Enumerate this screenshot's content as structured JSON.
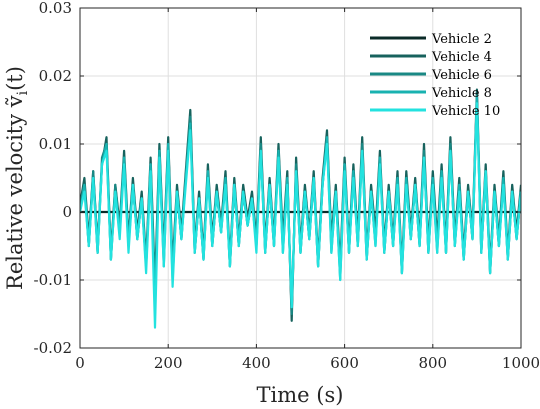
{
  "chart_data": {
    "type": "line",
    "xlabel": "Time (s)",
    "ylabel": "Relative velocity ṽ",
    "ylabel_sub": "i",
    "ylabel_arg": "(t)",
    "xlim": [
      0,
      1000
    ],
    "ylim": [
      -0.02,
      0.03
    ],
    "xticks": [
      0,
      200,
      400,
      600,
      800,
      1000
    ],
    "xtick_labels": [
      "0",
      "200",
      "400",
      "600",
      "800",
      "1000"
    ],
    "yticks": [
      -0.02,
      -0.01,
      0,
      0.01,
      0.02,
      0.03
    ],
    "ytick_labels": [
      "-0.02",
      "-0.01",
      "0",
      "0.01",
      "0.02",
      "0.03"
    ],
    "grid": true,
    "legend_position": "top-right",
    "series": [
      {
        "name": "Vehicle 2",
        "color": "#0b2b28",
        "x": [
          0,
          100,
          200,
          300,
          400,
          500,
          600,
          700,
          800,
          900,
          1000
        ],
        "values": [
          0,
          0,
          0,
          0,
          0,
          0,
          0,
          0,
          0,
          0,
          0
        ]
      },
      {
        "name": "Vehicle 4",
        "color": "#17625d",
        "x": [
          0,
          10,
          20,
          30,
          40,
          50,
          60,
          70,
          80,
          90,
          100,
          110,
          120,
          130,
          140,
          150,
          160,
          170,
          180,
          190,
          200,
          210,
          220,
          230,
          240,
          250,
          260,
          270,
          280,
          290,
          300,
          310,
          320,
          330,
          340,
          350,
          360,
          370,
          380,
          390,
          400,
          410,
          420,
          430,
          440,
          450,
          460,
          470,
          480,
          490,
          500,
          510,
          520,
          530,
          540,
          550,
          560,
          570,
          580,
          590,
          600,
          610,
          620,
          630,
          640,
          650,
          660,
          670,
          680,
          690,
          700,
          710,
          720,
          730,
          740,
          750,
          760,
          770,
          780,
          790,
          800,
          810,
          820,
          830,
          840,
          850,
          860,
          870,
          880,
          890,
          900,
          910,
          920,
          930,
          940,
          950,
          960,
          970,
          980,
          990,
          1000
        ],
        "values": [
          0.001,
          0.005,
          -0.004,
          0.006,
          -0.005,
          0.007,
          0.011,
          -0.006,
          0.004,
          -0.002,
          0.009,
          -0.004,
          0.005,
          -0.003,
          0.003,
          -0.007,
          0.008,
          -0.011,
          0.01,
          -0.006,
          0.011,
          -0.008,
          0.004,
          -0.003,
          0.006,
          0.015,
          -0.005,
          0.003,
          -0.006,
          0.007,
          -0.004,
          0.004,
          -0.002,
          0.006,
          -0.007,
          0.005,
          -0.004,
          0.004,
          -0.001,
          0.003,
          -0.004,
          0.011,
          -0.005,
          0.005,
          -0.004,
          0.01,
          -0.004,
          0.006,
          -0.016,
          0.008,
          -0.005,
          0.004,
          -0.003,
          0.006,
          -0.007,
          0.005,
          0.012,
          -0.004,
          0.004,
          -0.008,
          0.008,
          -0.005,
          0.007,
          -0.004,
          0.011,
          -0.006,
          0.004,
          -0.003,
          0.009,
          -0.005,
          0.004,
          -0.004,
          0.006,
          -0.008,
          0.006,
          -0.003,
          0.005,
          -0.004,
          0.01,
          -0.005,
          0.006,
          -0.004,
          0.007,
          -0.005,
          0.011,
          -0.004,
          0.005,
          -0.006,
          0.004,
          -0.003,
          0.018,
          -0.005,
          0.007,
          -0.008,
          0.004,
          -0.004,
          0.006,
          -0.006,
          0.004,
          -0.003,
          0.004
        ]
      },
      {
        "name": "Vehicle 6",
        "color": "#1a8884",
        "x": [
          0,
          10,
          20,
          30,
          40,
          50,
          60,
          70,
          80,
          90,
          100,
          110,
          120,
          130,
          140,
          150,
          160,
          170,
          180,
          190,
          200,
          210,
          220,
          230,
          240,
          250,
          260,
          270,
          280,
          290,
          300,
          310,
          320,
          330,
          340,
          350,
          360,
          370,
          380,
          390,
          400,
          410,
          420,
          430,
          440,
          450,
          460,
          470,
          480,
          490,
          500,
          510,
          520,
          530,
          540,
          550,
          560,
          570,
          580,
          590,
          600,
          610,
          620,
          630,
          640,
          650,
          660,
          670,
          680,
          690,
          700,
          710,
          720,
          730,
          740,
          750,
          760,
          770,
          780,
          790,
          800,
          810,
          820,
          830,
          840,
          850,
          860,
          870,
          880,
          890,
          900,
          910,
          920,
          930,
          940,
          950,
          960,
          970,
          980,
          990,
          1000
        ],
        "values": [
          0.001,
          0.004,
          -0.005,
          0.006,
          -0.006,
          0.008,
          0.01,
          -0.007,
          0.004,
          -0.003,
          0.008,
          -0.005,
          0.004,
          -0.004,
          0.002,
          -0.008,
          0.007,
          -0.013,
          0.009,
          -0.007,
          0.01,
          -0.009,
          0.003,
          -0.004,
          0.005,
          0.014,
          -0.006,
          0.002,
          -0.007,
          0.006,
          -0.005,
          0.003,
          -0.003,
          0.005,
          -0.008,
          0.004,
          -0.005,
          0.003,
          -0.002,
          0.002,
          -0.005,
          0.01,
          -0.006,
          0.004,
          -0.005,
          0.009,
          -0.005,
          0.005,
          -0.015,
          0.007,
          -0.006,
          0.003,
          -0.004,
          0.005,
          -0.008,
          0.004,
          0.011,
          -0.005,
          0.003,
          -0.009,
          0.007,
          -0.006,
          0.006,
          -0.005,
          0.01,
          -0.007,
          0.003,
          -0.004,
          0.008,
          -0.006,
          0.003,
          -0.005,
          0.005,
          -0.009,
          0.005,
          -0.004,
          0.004,
          -0.005,
          0.009,
          -0.006,
          0.005,
          -0.005,
          0.006,
          -0.006,
          0.01,
          -0.005,
          0.004,
          -0.007,
          0.003,
          -0.004,
          0.017,
          -0.006,
          0.006,
          -0.009,
          0.003,
          -0.005,
          0.005,
          -0.007,
          0.003,
          -0.004,
          0.003
        ]
      },
      {
        "name": "Vehicle 8",
        "color": "#18b2b0",
        "x": [
          0,
          10,
          20,
          30,
          40,
          50,
          60,
          70,
          80,
          90,
          100,
          110,
          120,
          130,
          140,
          150,
          160,
          170,
          180,
          190,
          200,
          210,
          220,
          230,
          240,
          250,
          260,
          270,
          280,
          290,
          300,
          310,
          320,
          330,
          340,
          350,
          360,
          370,
          380,
          390,
          400,
          410,
          420,
          430,
          440,
          450,
          460,
          470,
          480,
          490,
          500,
          510,
          520,
          530,
          540,
          550,
          560,
          570,
          580,
          590,
          600,
          610,
          620,
          630,
          640,
          650,
          660,
          670,
          680,
          690,
          700,
          710,
          720,
          730,
          740,
          750,
          760,
          770,
          780,
          790,
          800,
          810,
          820,
          830,
          840,
          850,
          860,
          870,
          880,
          890,
          900,
          910,
          920,
          930,
          940,
          950,
          960,
          970,
          980,
          990,
          1000
        ],
        "values": [
          0.0,
          0.004,
          -0.005,
          0.005,
          -0.006,
          0.007,
          0.01,
          -0.007,
          0.003,
          -0.003,
          0.008,
          -0.005,
          0.004,
          -0.004,
          0.002,
          -0.008,
          0.007,
          -0.014,
          0.009,
          -0.008,
          0.01,
          -0.01,
          0.003,
          -0.004,
          0.005,
          0.013,
          -0.006,
          0.002,
          -0.007,
          0.006,
          -0.005,
          0.003,
          -0.003,
          0.005,
          -0.008,
          0.004,
          -0.005,
          0.003,
          -0.002,
          0.002,
          -0.005,
          0.009,
          -0.006,
          0.004,
          -0.005,
          0.009,
          -0.006,
          0.005,
          -0.014,
          0.006,
          -0.006,
          0.003,
          -0.004,
          0.005,
          -0.008,
          0.004,
          0.011,
          -0.006,
          0.003,
          -0.01,
          0.007,
          -0.006,
          0.006,
          -0.005,
          0.009,
          -0.007,
          0.003,
          -0.005,
          0.008,
          -0.006,
          0.003,
          -0.005,
          0.005,
          -0.009,
          0.005,
          -0.004,
          0.004,
          -0.005,
          0.008,
          -0.006,
          0.005,
          -0.006,
          0.006,
          -0.006,
          0.009,
          -0.005,
          0.004,
          -0.007,
          0.003,
          -0.004,
          0.017,
          -0.006,
          0.006,
          -0.009,
          0.003,
          -0.005,
          0.005,
          -0.007,
          0.003,
          -0.004,
          0.003
        ]
      },
      {
        "name": "Vehicle 10",
        "color": "#23e2df",
        "x": [
          0,
          10,
          20,
          30,
          40,
          50,
          60,
          70,
          80,
          90,
          100,
          110,
          120,
          130,
          140,
          150,
          160,
          170,
          180,
          190,
          200,
          210,
          220,
          230,
          240,
          250,
          260,
          270,
          280,
          290,
          300,
          310,
          320,
          330,
          340,
          350,
          360,
          370,
          380,
          390,
          400,
          410,
          420,
          430,
          440,
          450,
          460,
          470,
          480,
          490,
          500,
          510,
          520,
          530,
          540,
          550,
          560,
          570,
          580,
          590,
          600,
          610,
          620,
          630,
          640,
          650,
          660,
          670,
          680,
          690,
          700,
          710,
          720,
          730,
          740,
          750,
          760,
          770,
          780,
          790,
          800,
          810,
          820,
          830,
          840,
          850,
          860,
          870,
          880,
          890,
          900,
          910,
          920,
          930,
          940,
          950,
          960,
          970,
          980,
          990,
          1000
        ],
        "values": [
          0.0,
          0.003,
          -0.005,
          0.005,
          -0.006,
          0.007,
          0.009,
          -0.007,
          0.003,
          -0.004,
          0.007,
          -0.006,
          0.004,
          -0.004,
          0.002,
          -0.009,
          0.006,
          -0.017,
          0.008,
          -0.008,
          0.009,
          -0.011,
          0.003,
          -0.004,
          0.004,
          0.012,
          -0.006,
          0.002,
          -0.007,
          0.005,
          -0.005,
          0.003,
          -0.003,
          0.004,
          -0.008,
          0.004,
          -0.005,
          0.003,
          -0.002,
          0.002,
          -0.006,
          0.009,
          -0.006,
          0.004,
          -0.005,
          0.008,
          -0.006,
          0.004,
          -0.014,
          0.006,
          -0.006,
          0.003,
          -0.004,
          0.005,
          -0.008,
          0.004,
          0.01,
          -0.006,
          0.003,
          -0.01,
          0.006,
          -0.006,
          0.005,
          -0.005,
          0.009,
          -0.007,
          0.003,
          -0.005,
          0.007,
          -0.006,
          0.003,
          -0.005,
          0.004,
          -0.009,
          0.004,
          -0.004,
          0.004,
          -0.005,
          0.008,
          -0.006,
          0.004,
          -0.006,
          0.005,
          -0.006,
          0.009,
          -0.005,
          0.003,
          -0.007,
          0.003,
          -0.004,
          0.016,
          -0.006,
          0.006,
          -0.009,
          0.003,
          -0.005,
          0.004,
          -0.007,
          0.003,
          -0.004,
          0.003
        ]
      }
    ]
  }
}
